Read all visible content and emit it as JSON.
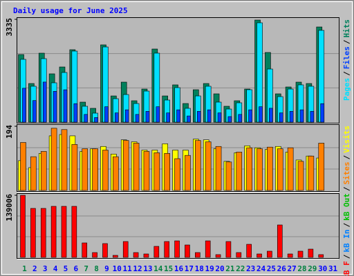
{
  "chart_data": [
    {
      "type": "bar",
      "title": "Daily usage for June 2025",
      "categories": [
        "1",
        "2",
        "3",
        "4",
        "5",
        "6",
        "7",
        "8",
        "9",
        "10",
        "11",
        "12",
        "13",
        "14",
        "15",
        "16",
        "17",
        "18",
        "19",
        "20",
        "21",
        "22",
        "23",
        "24",
        "25",
        "26",
        "27",
        "28",
        "29",
        "30",
        "31"
      ],
      "category_colors": [
        "#008040",
        "#0000ff",
        "#0000ff",
        "#0000ff",
        "#0000ff",
        "#0000ff",
        "#008040",
        "#008040",
        "#0000ff",
        "#0000ff",
        "#0000ff",
        "#0000ff",
        "#0000ff",
        "#008040",
        "#008040",
        "#0000ff",
        "#0000ff",
        "#0000ff",
        "#0000ff",
        "#0000ff",
        "#008040",
        "#008040",
        "#0000ff",
        "#0000ff",
        "#0000ff",
        "#0000ff",
        "#0000ff",
        "#008040",
        "#008040",
        "#0000ff",
        "#0000ff"
      ],
      "legend_separator": "/",
      "series": [
        {
          "name": "Hits",
          "color": "#00805c",
          "values": [
            2193,
            1253,
            2238,
            1567,
            1790,
            2350,
            649,
            448,
            2507,
            850,
            1298,
            694,
            1074,
            2372,
            850,
            1209,
            604,
            1052,
            1253,
            918,
            515,
            694,
            1074,
            3312,
            2260,
            918,
            1141,
            1298,
            1253,
            3088,
            0
          ]
        },
        {
          "name": "Files",
          "color": "#00e0ff",
          "values": [
            2037,
            1164,
            2059,
            1276,
            1611,
            2305,
            515,
            291,
            2439,
            761,
            895,
            604,
            1007,
            2238,
            716,
            1119,
            448,
            850,
            1164,
            649,
            425,
            627,
            1052,
            3223,
            1723,
            828,
            1074,
            1209,
            1164,
            2977,
            0
          ]
        },
        {
          "name": "Pages",
          "color": "#0040ff",
          "values": [
            1100,
            700,
            1300,
            1000,
            1050,
            600,
            250,
            150,
            500,
            300,
            400,
            250,
            350,
            500,
            300,
            400,
            200,
            350,
            400,
            300,
            180,
            250,
            400,
            500,
            450,
            300,
            350,
            400,
            350,
            600,
            0
          ]
        }
      ],
      "ylim": [
        0,
        3335
      ],
      "yticks": [
        3335
      ]
    },
    {
      "type": "bar",
      "series": [
        {
          "name": "Visits",
          "color": "#ffff00",
          "values": [
            90,
            69,
            112,
            165,
            169,
            165,
            118,
            126,
            133,
            110,
            153,
            147,
            122,
            122,
            141,
            122,
            122,
            155,
            153,
            126,
            88,
            114,
            135,
            129,
            124,
            133,
            116,
            92,
            104,
            98,
            0
          ]
        },
        {
          "name": "Sites",
          "color": "#ff8000",
          "values": [
            145,
            102,
            118,
            188,
            184,
            139,
            126,
            126,
            122,
            102,
            151,
            143,
            118,
            114,
            112,
            96,
            106,
            151,
            147,
            133,
            86,
            116,
            129,
            126,
            131,
            126,
            129,
            88,
            104,
            143,
            0
          ]
        }
      ],
      "ylim": [
        0,
        194
      ],
      "yticks": [
        194
      ]
    },
    {
      "type": "bar",
      "series": [
        {
          "name": "kB F",
          "color": "#ff0000",
          "values": [
            139006,
            109660,
            109660,
            114300,
            114300,
            114300,
            32400,
            10800,
            30900,
            4600,
            35500,
            10800,
            7700,
            24700,
            35500,
            37000,
            27800,
            10800,
            37000,
            6200,
            35500,
            10800,
            29300,
            7700,
            13900,
            72600,
            7700,
            13900,
            18500,
            6200,
            0
          ]
        }
      ],
      "legend": [
        {
          "name": "kB In",
          "color": "#0080ff"
        },
        {
          "name": "kB Out",
          "color": "#00c000"
        }
      ],
      "ylim": [
        0,
        139006
      ],
      "yticks": [
        139006
      ]
    }
  ]
}
